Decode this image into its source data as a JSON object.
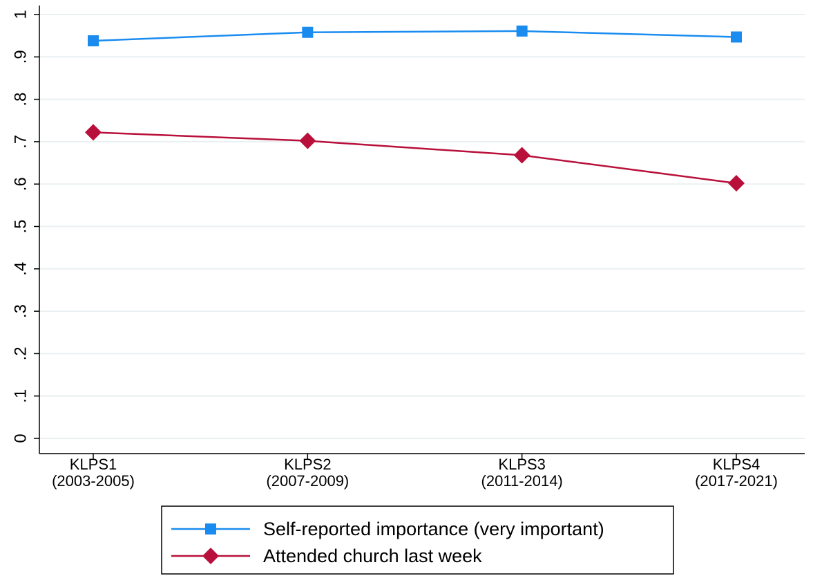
{
  "chart_data": {
    "type": "line",
    "title": "",
    "xlabel": "",
    "ylabel": "",
    "categories": [
      [
        "KLPS1",
        "(2003-2005)"
      ],
      [
        "KLPS2",
        "(2007-2009)"
      ],
      [
        "KLPS3",
        "(2011-2014)"
      ],
      [
        "KLPS4",
        "(2017-2021)"
      ]
    ],
    "ylim": [
      0,
      1
    ],
    "yticks": [
      0,
      0.1,
      0.2,
      0.3,
      0.4,
      0.5,
      0.6,
      0.7,
      0.8,
      0.9,
      1
    ],
    "ytick_labels": [
      "0",
      ".1",
      ".2",
      ".3",
      ".4",
      ".5",
      ".6",
      ".7",
      ".8",
      ".9",
      "1"
    ],
    "grid": true,
    "legend_position": "bottom",
    "series": [
      {
        "name": "Self-reported importance (very important)",
        "color": "#1a8cf0",
        "marker": "square",
        "values": [
          0.938,
          0.958,
          0.961,
          0.947
        ]
      },
      {
        "name": "Attended church last week",
        "color": "#b8103a",
        "marker": "diamond",
        "values": [
          0.722,
          0.702,
          0.668,
          0.602
        ]
      }
    ]
  }
}
